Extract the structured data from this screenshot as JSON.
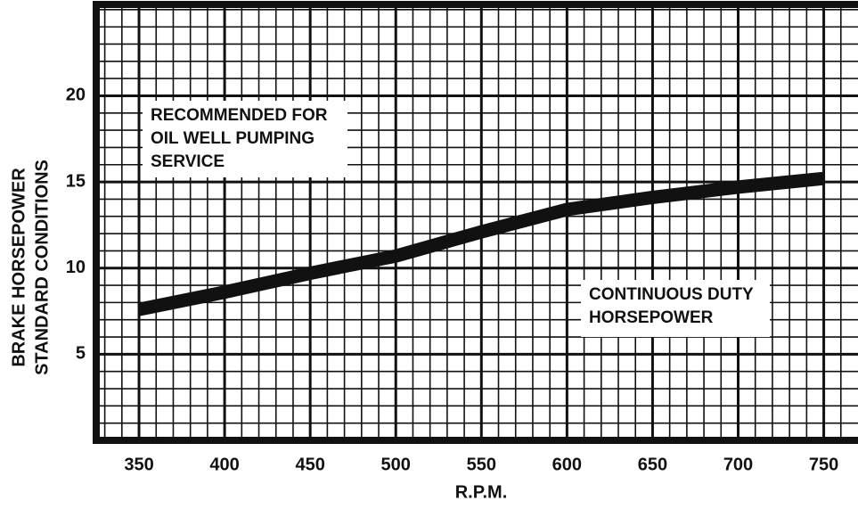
{
  "chart_data": {
    "type": "line",
    "x": [
      350,
      400,
      450,
      500,
      550,
      600,
      650,
      700,
      750
    ],
    "series": [
      {
        "name": "CONTINUOUS DUTY HORSEPOWER",
        "color": "#111111",
        "values": [
          7.6,
          8.6,
          9.7,
          10.7,
          12.1,
          13.4,
          14.1,
          14.7,
          15.2
        ]
      }
    ],
    "xlim": [
      325,
      770
    ],
    "ylim": [
      0,
      25.3
    ],
    "xticks": [
      350,
      400,
      450,
      500,
      550,
      600,
      650,
      700,
      750
    ],
    "yticks": [
      5,
      10,
      15,
      20
    ],
    "grid": true,
    "xlabel": "R.P.M.",
    "ylabel": [
      "BRAKE HORSEPOWER",
      "STANDARD CONDITIONS"
    ],
    "annotations": [
      [
        "RECOMMENDED FOR",
        "OIL WELL PUMPING",
        "SERVICE"
      ],
      [
        "CONTINUOUS DUTY",
        "HORSEPOWER"
      ]
    ]
  }
}
